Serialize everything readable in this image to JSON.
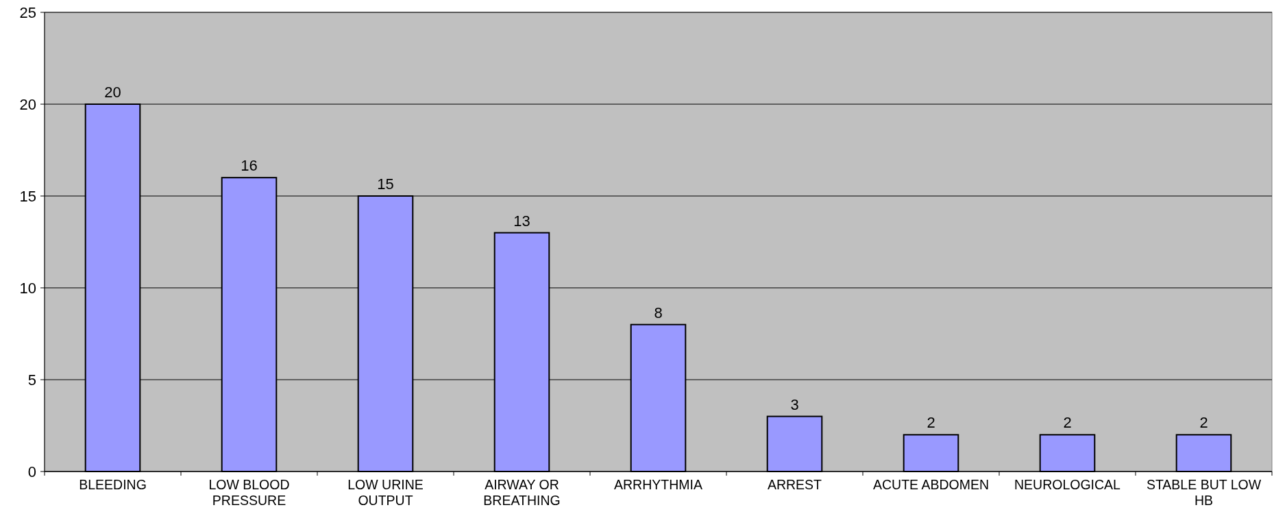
{
  "chart_data": {
    "type": "bar",
    "categories": [
      "BLEEDING",
      "LOW BLOOD PRESSURE",
      "LOW URINE OUTPUT",
      "AIRWAY OR BREATHING",
      "ARRHYTHMIA",
      "ARREST",
      "ACUTE ABDOMEN",
      "NEUROLOGICAL",
      "STABLE BUT LOW HB"
    ],
    "values": [
      20,
      16,
      15,
      13,
      8,
      3,
      2,
      2,
      2
    ],
    "color": "#9999ff",
    "ylim": [
      0,
      25
    ],
    "yticks": [
      0,
      5,
      10,
      15,
      20,
      25
    ],
    "grid": "y",
    "data_labels": true
  }
}
